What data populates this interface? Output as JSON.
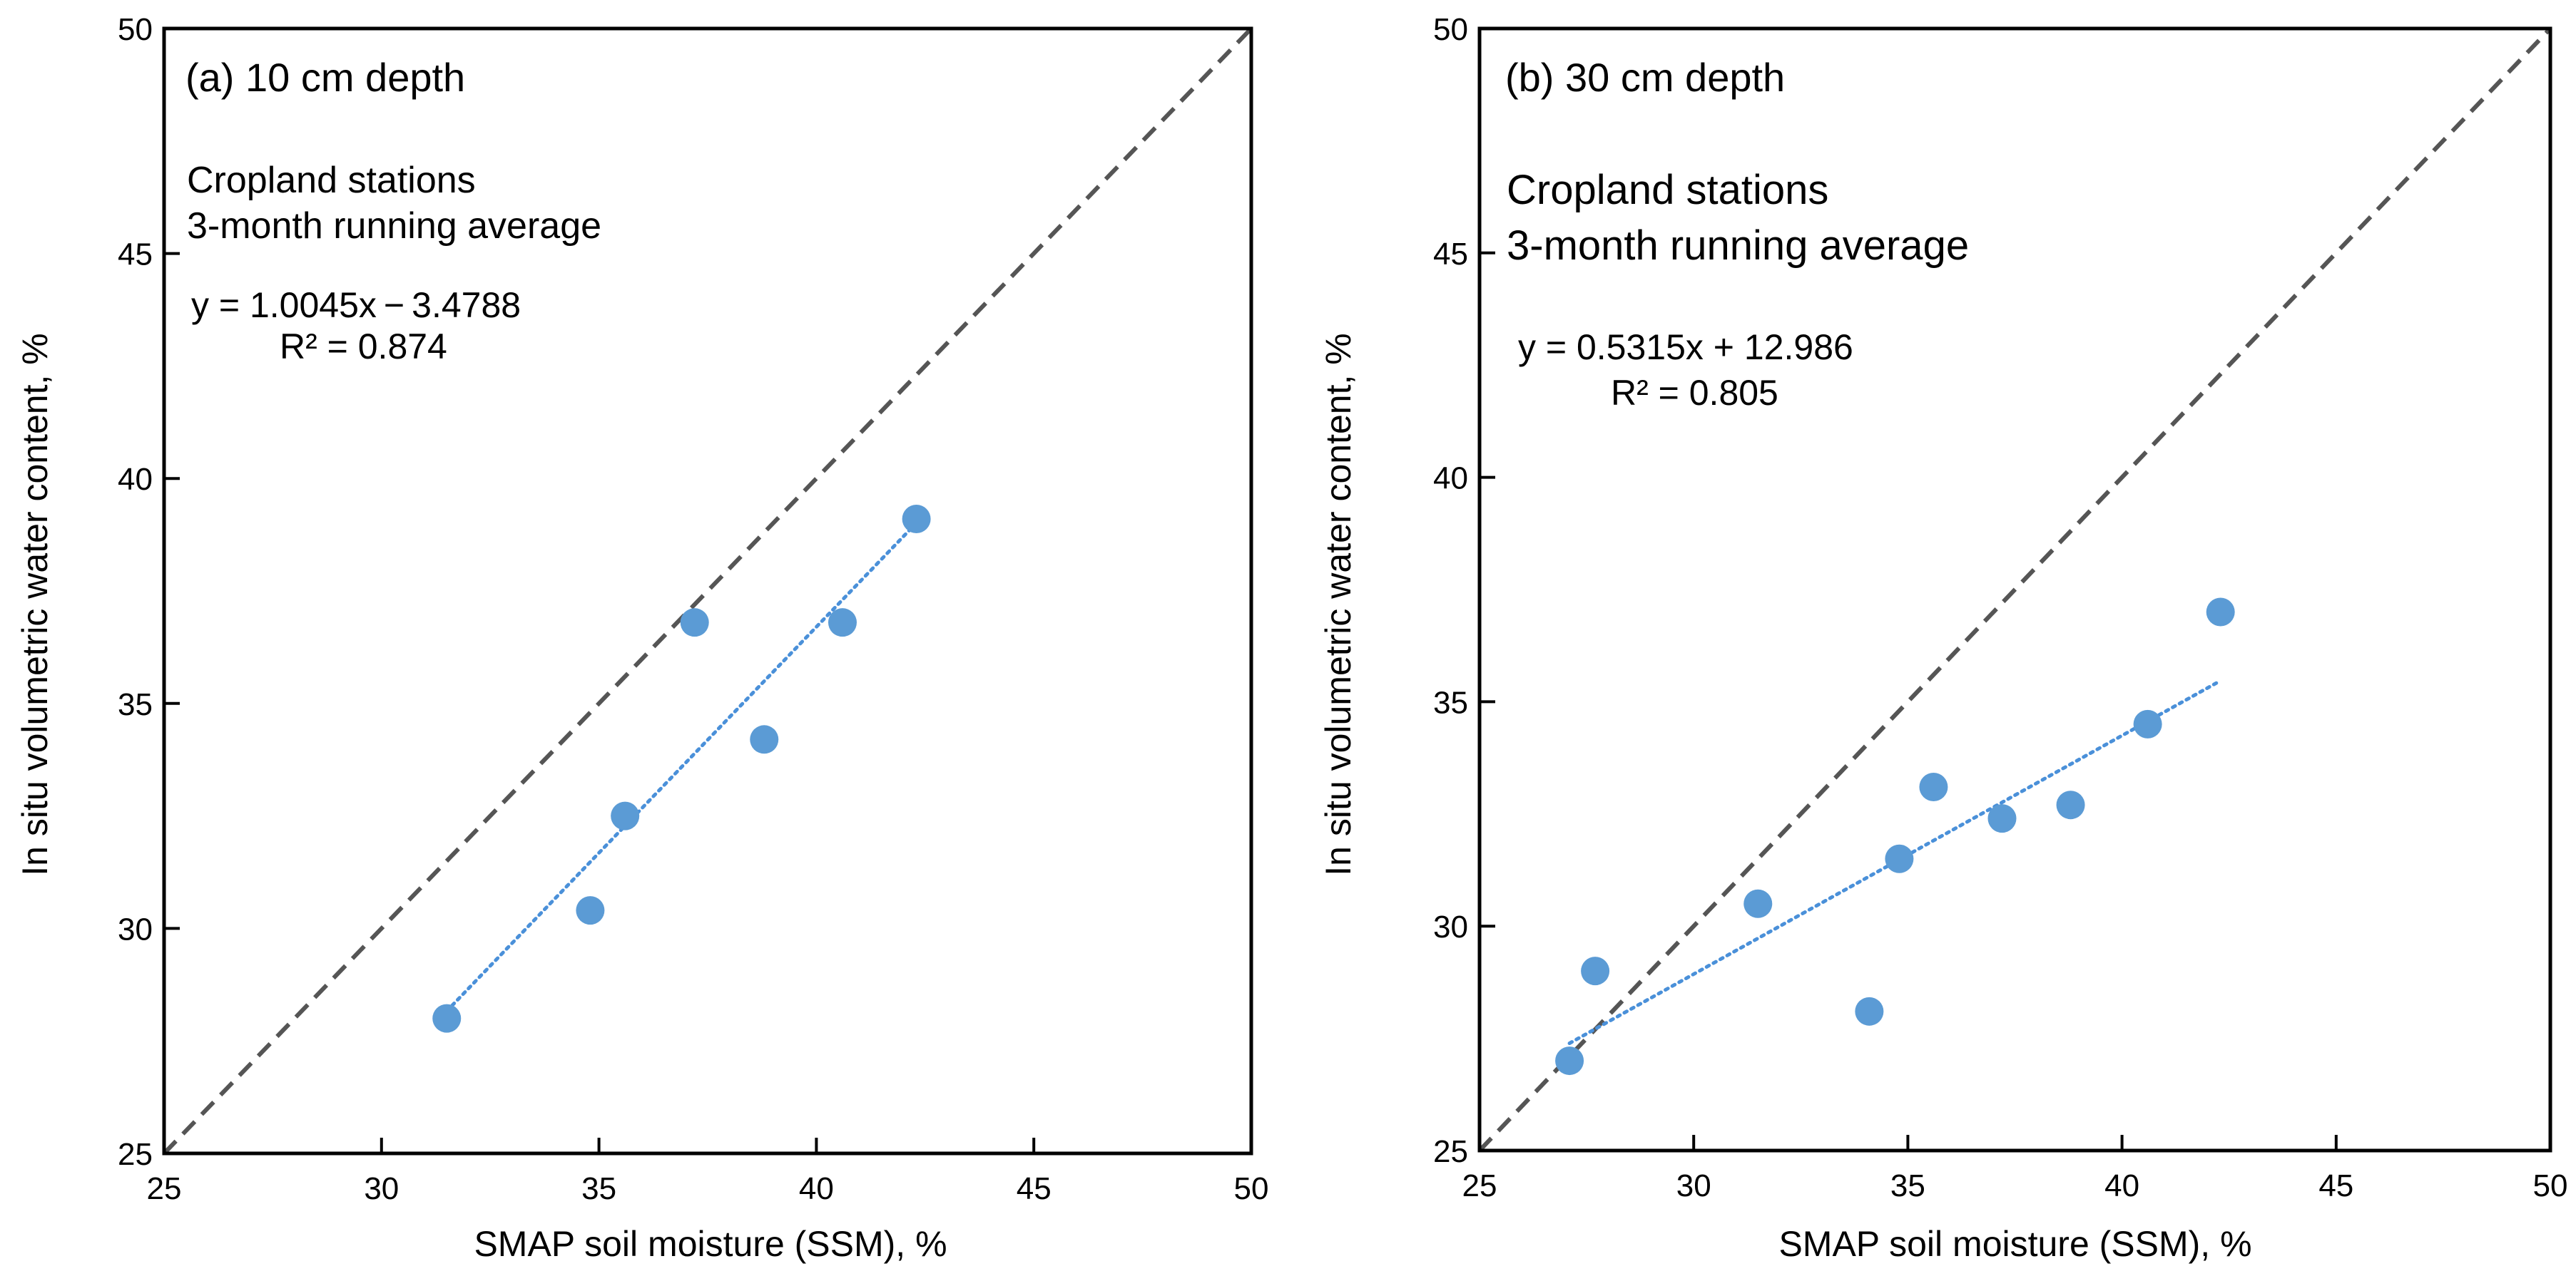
{
  "chart_data": [
    {
      "type": "scatter",
      "panel_label": "(a) 10 cm depth",
      "notes": [
        "Cropland stations",
        "3-month running average"
      ],
      "equation": "y = 1.0045x − 3.4788",
      "r_squared": "R² = 0.874",
      "xlabel": "SMAP soil moisture (SSM), %",
      "ylabel": "In situ volumetric water content, %",
      "xlim": [
        25,
        50
      ],
      "ylim": [
        25,
        50
      ],
      "xticks": [
        25,
        30,
        35,
        40,
        45,
        50
      ],
      "yticks": [
        25,
        30,
        35,
        40,
        45,
        50
      ],
      "grid": false,
      "one_to_one_line": true,
      "trendline": {
        "slope": 1.0045,
        "intercept": -3.4788,
        "x_range": [
          31.5,
          42.3
        ]
      },
      "points": [
        {
          "x": 31.5,
          "y": 28.0
        },
        {
          "x": 34.8,
          "y": 30.4
        },
        {
          "x": 35.6,
          "y": 32.5
        },
        {
          "x": 37.2,
          "y": 36.8
        },
        {
          "x": 38.8,
          "y": 34.2
        },
        {
          "x": 40.6,
          "y": 36.8
        },
        {
          "x": 42.3,
          "y": 39.1
        }
      ],
      "colors": {
        "points": "#5b9bd5",
        "trendline": "#4a90d9",
        "one_to_one": "#555555"
      }
    },
    {
      "type": "scatter",
      "panel_label": "(b) 30 cm depth",
      "notes": [
        "Cropland stations",
        "3-month running average"
      ],
      "equation": "y = 0.5315x + 12.986",
      "r_squared": "R² = 0.805",
      "xlabel": "SMAP soil moisture (SSM), %",
      "ylabel": "In situ volumetric water content, %",
      "xlim": [
        25,
        50
      ],
      "ylim": [
        25,
        50
      ],
      "xticks": [
        25,
        30,
        35,
        40,
        45,
        50
      ],
      "yticks": [
        25,
        30,
        35,
        40,
        45,
        50
      ],
      "grid": false,
      "one_to_one_line": true,
      "trendline": {
        "slope": 0.5315,
        "intercept": 12.986,
        "x_range": [
          27.1,
          42.3
        ]
      },
      "points": [
        {
          "x": 27.1,
          "y": 27.0
        },
        {
          "x": 27.7,
          "y": 29.0
        },
        {
          "x": 31.5,
          "y": 30.5
        },
        {
          "x": 34.1,
          "y": 28.1
        },
        {
          "x": 34.8,
          "y": 31.5
        },
        {
          "x": 35.6,
          "y": 33.1
        },
        {
          "x": 37.2,
          "y": 32.4
        },
        {
          "x": 38.8,
          "y": 32.7
        },
        {
          "x": 40.6,
          "y": 34.5
        },
        {
          "x": 42.3,
          "y": 37.0
        }
      ],
      "colors": {
        "points": "#5b9bd5",
        "trendline": "#4a90d9",
        "one_to_one": "#555555"
      }
    }
  ]
}
